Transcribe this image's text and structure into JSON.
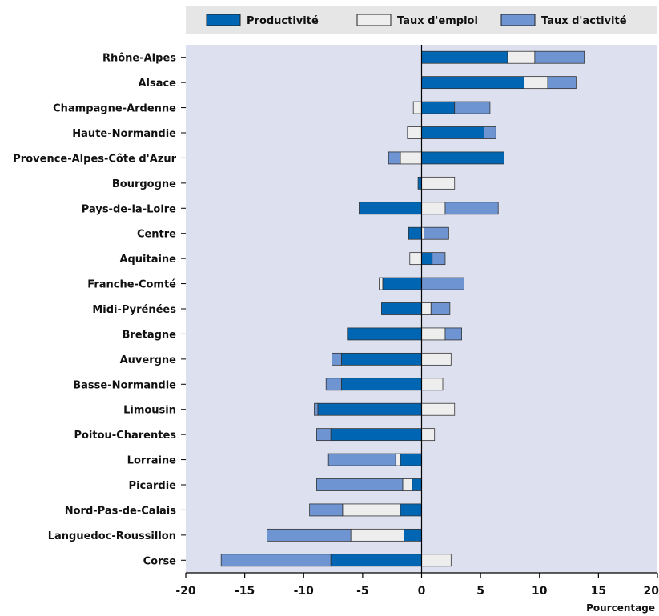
{
  "chart_data": {
    "type": "bar",
    "orientation": "horizontal",
    "stacked": "diverging",
    "xlabel": "Pourcentage",
    "xlim": [
      -20,
      20
    ],
    "xticks": [
      "-20",
      "-15",
      "-10",
      "-5",
      "0",
      "5",
      "10",
      "15",
      "20"
    ],
    "xtick_values": [
      -20,
      -15,
      -10,
      -5,
      0,
      5,
      10,
      15,
      20
    ],
    "grid": false,
    "legend_position": "top",
    "categories": [
      "Rhône-Alpes",
      "Alsace",
      "Champagne-Ardenne",
      "Haute-Normandie",
      "Provence-Alpes-Côte d'Azur",
      "Bourgogne",
      "Pays-de-la-Loire",
      "Centre",
      "Aquitaine",
      "Franche-Comté",
      "Midi-Pyrénées",
      "Bretagne",
      "Auvergne",
      "Basse-Normandie",
      "Limousin",
      "Poitou-Charentes",
      "Lorraine",
      "Picardie",
      "Nord-Pas-de-Calais",
      "Languedoc-Roussillon",
      "Corse"
    ],
    "series": [
      {
        "name": "Productivité",
        "color": "#0066b3",
        "values": [
          7.3,
          8.7,
          2.8,
          5.3,
          7.0,
          -0.3,
          -5.3,
          -1.1,
          0.9,
          -3.3,
          -3.4,
          -6.3,
          -6.8,
          -6.8,
          -8.8,
          -7.7,
          -1.8,
          -0.8,
          -1.8,
          -1.5,
          -7.7
        ]
      },
      {
        "name": "Taux d'emploi",
        "color": "#eeeeee",
        "values": [
          2.3,
          2.0,
          -0.7,
          -1.2,
          -1.8,
          2.8,
          2.0,
          0.2,
          -1.0,
          -0.3,
          0.8,
          2.0,
          2.5,
          1.8,
          2.8,
          1.1,
          -0.4,
          -0.8,
          -4.9,
          -4.5,
          2.5
        ]
      },
      {
        "name": "Taux d'activité",
        "color": "#6f94d2",
        "values": [
          4.2,
          2.4,
          3.0,
          1.0,
          -1.0,
          0.0,
          4.5,
          2.1,
          1.1,
          3.6,
          1.6,
          1.4,
          -0.8,
          -1.3,
          -0.3,
          -1.2,
          -5.7,
          -7.3,
          -2.8,
          -7.1,
          -9.3
        ]
      }
    ]
  }
}
